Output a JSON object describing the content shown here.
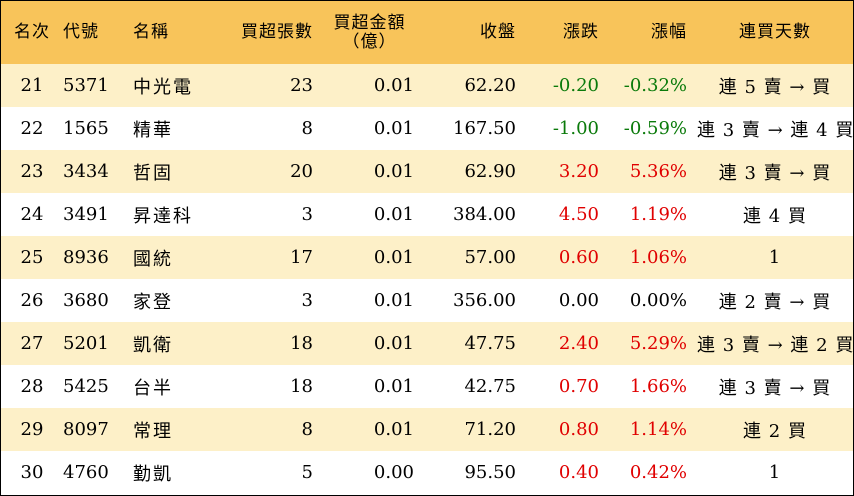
{
  "headers": {
    "rank": "名次",
    "code": "代號",
    "name": "名稱",
    "net_buy_lots": "買超張數",
    "net_buy_amount_l1": "買超金額",
    "net_buy_amount_l2": "（億）",
    "close": "收盤",
    "change": "漲跌",
    "change_pct": "漲幅",
    "streak": "連買天數"
  },
  "colors": {
    "header_bg": "#f8c45a",
    "odd_row_bg": "#fdf0c8",
    "up": "#e00000",
    "down": "#0a7a0a"
  },
  "rows": [
    {
      "rank": "21",
      "code": "5371",
      "name": "中光電",
      "lots": "23",
      "amount": "0.01",
      "close": "62.20",
      "change": "-0.20",
      "pct": "-0.32%",
      "streak": "連 5 賣 → 買",
      "dir": "neg"
    },
    {
      "rank": "22",
      "code": "1565",
      "name": "精華",
      "lots": "8",
      "amount": "0.01",
      "close": "167.50",
      "change": "-1.00",
      "pct": "-0.59%",
      "streak": "連 3 賣 → 連 4 買",
      "dir": "neg"
    },
    {
      "rank": "23",
      "code": "3434",
      "name": "哲固",
      "lots": "20",
      "amount": "0.01",
      "close": "62.90",
      "change": "3.20",
      "pct": "5.36%",
      "streak": "連 3 賣 → 買",
      "dir": "pos"
    },
    {
      "rank": "24",
      "code": "3491",
      "name": "昇達科",
      "lots": "3",
      "amount": "0.01",
      "close": "384.00",
      "change": "4.50",
      "pct": "1.19%",
      "streak": "連 4 買",
      "dir": "pos"
    },
    {
      "rank": "25",
      "code": "8936",
      "name": "國統",
      "lots": "17",
      "amount": "0.01",
      "close": "57.00",
      "change": "0.60",
      "pct": "1.06%",
      "streak": "1",
      "dir": "pos"
    },
    {
      "rank": "26",
      "code": "3680",
      "name": "家登",
      "lots": "3",
      "amount": "0.01",
      "close": "356.00",
      "change": "0.00",
      "pct": "0.00%",
      "streak": "連 2 賣 → 買",
      "dir": "zero"
    },
    {
      "rank": "27",
      "code": "5201",
      "name": "凱衛",
      "lots": "18",
      "amount": "0.01",
      "close": "47.75",
      "change": "2.40",
      "pct": "5.29%",
      "streak": "連 3 賣 → 連 2 買",
      "dir": "pos"
    },
    {
      "rank": "28",
      "code": "5425",
      "name": "台半",
      "lots": "18",
      "amount": "0.01",
      "close": "42.75",
      "change": "0.70",
      "pct": "1.66%",
      "streak": "連 3 賣 → 買",
      "dir": "pos"
    },
    {
      "rank": "29",
      "code": "8097",
      "name": "常理",
      "lots": "8",
      "amount": "0.01",
      "close": "71.20",
      "change": "0.80",
      "pct": "1.14%",
      "streak": "連 2 買",
      "dir": "pos"
    },
    {
      "rank": "30",
      "code": "4760",
      "name": "勤凱",
      "lots": "5",
      "amount": "0.00",
      "close": "95.50",
      "change": "0.40",
      "pct": "0.42%",
      "streak": "1",
      "dir": "pos"
    }
  ]
}
